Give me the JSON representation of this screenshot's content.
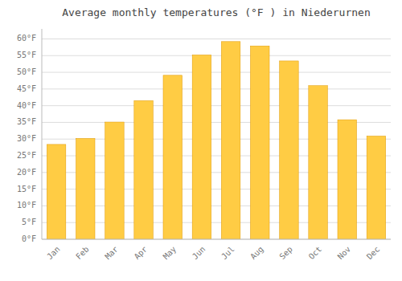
{
  "chart_data": {
    "type": "bar",
    "title": "Average monthly temperatures (°F ) in Niederurnen",
    "categories": [
      "Jan",
      "Feb",
      "Mar",
      "Apr",
      "May",
      "Jun",
      "Jul",
      "Aug",
      "Sep",
      "Oct",
      "Nov",
      "Dec"
    ],
    "values": [
      28.4,
      30.2,
      35.1,
      41.5,
      49.1,
      55.2,
      59.2,
      57.9,
      53.4,
      46.0,
      35.8,
      30.9
    ],
    "color": "#FFCC44",
    "ylim": [
      0,
      63
    ],
    "yticks": [
      {
        "value": 0,
        "label": "0°F"
      },
      {
        "value": 5,
        "label": "5°F"
      },
      {
        "value": 10,
        "label": "10°F"
      },
      {
        "value": 15,
        "label": "15°F"
      },
      {
        "value": 20,
        "label": "20°F"
      },
      {
        "value": 25,
        "label": "25°F"
      },
      {
        "value": 30,
        "label": "30°F"
      },
      {
        "value": 35,
        "label": "35°F"
      },
      {
        "value": 40,
        "label": "40°F"
      },
      {
        "value": 45,
        "label": "45°F"
      },
      {
        "value": 50,
        "label": "50°F"
      },
      {
        "value": 55,
        "label": "55°F"
      },
      {
        "value": 60,
        "label": "60°F"
      }
    ],
    "grid": true
  }
}
